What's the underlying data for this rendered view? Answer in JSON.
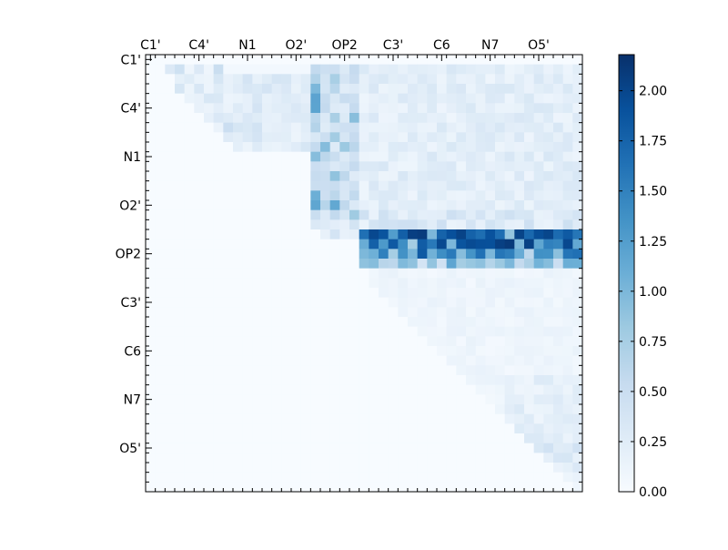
{
  "chart_data": {
    "type": "heatmap",
    "title": "",
    "xlabel": "",
    "ylabel": "",
    "x_tick_labels": [
      "C1'",
      "C4'",
      "N1",
      "O2'",
      "OP2",
      "C3'",
      "C6",
      "N7",
      "O5'"
    ],
    "y_tick_labels": [
      "C1'",
      "C4'",
      "N1",
      "O2'",
      "OP2",
      "C3'",
      "C6",
      "N7",
      "O5'"
    ],
    "x_ticks_position": "top",
    "n_rows": 45,
    "n_cols": 45,
    "grid": false,
    "colormap": "Blues",
    "colormap_stops": [
      "#f7fbff",
      "#deebf7",
      "#c6dbef",
      "#9ecae1",
      "#6baed6",
      "#4292c6",
      "#2171b5",
      "#08519c",
      "#08306b"
    ],
    "colorbar": {
      "vmin": 0.0,
      "vmax": 2.18,
      "tick_values": [
        0.0,
        0.25,
        0.5,
        0.75,
        1.0,
        1.25,
        1.5,
        1.75,
        2.0
      ],
      "tick_labels": [
        "0.00",
        "0.25",
        "0.50",
        "0.75",
        "1.00",
        "1.25",
        "1.50",
        "1.75",
        "2.00"
      ]
    },
    "row_profiles": [
      {
        "rows": [
          1
        ],
        "cols": [
          2,
          16
        ],
        "values": [
          0.3,
          0.45,
          0.1,
          0.3,
          0.1,
          0.5,
          0.05,
          0.05,
          0.05,
          0.05,
          0.05,
          0.05,
          0.05,
          0.05,
          0.05
        ]
      },
      {
        "rows": [
          2,
          9
        ],
        "cols": [
          3,
          19
        ],
        "level": 0.25
      },
      {
        "rows": [
          7
        ],
        "cols": [
          8,
          14
        ],
        "level": 0.35
      },
      {
        "rows": [
          1,
          16
        ],
        "cols": [
          17,
          21
        ],
        "level": 0.5,
        "peak": 1.2
      },
      {
        "rows": [
          1,
          16
        ],
        "cols": [
          22,
          44
        ],
        "level": 0.22
      },
      {
        "rows": [
          16,
          18
        ],
        "cols": [
          17,
          44
        ],
        "level": 0.3
      },
      {
        "rows": [
          18,
          19
        ],
        "cols": [
          22,
          44
        ],
        "level": 1.6,
        "peak": 2.15
      },
      {
        "rows": [
          20
        ],
        "cols": [
          22,
          44
        ],
        "level": 1.35,
        "peak": 1.9
      },
      {
        "rows": [
          21
        ],
        "cols": [
          22,
          44
        ],
        "level": 0.85,
        "peak": 1.3
      },
      {
        "rows": [
          22,
          44
        ],
        "cols": [
          23,
          44
        ],
        "level": 0.1
      },
      {
        "rows": [
          33,
          39
        ],
        "cols": [
          37,
          44
        ],
        "level": 0.2
      },
      {
        "rows": [
          40,
          42
        ],
        "cols": [
          40,
          44
        ],
        "level": 0.3
      }
    ]
  }
}
